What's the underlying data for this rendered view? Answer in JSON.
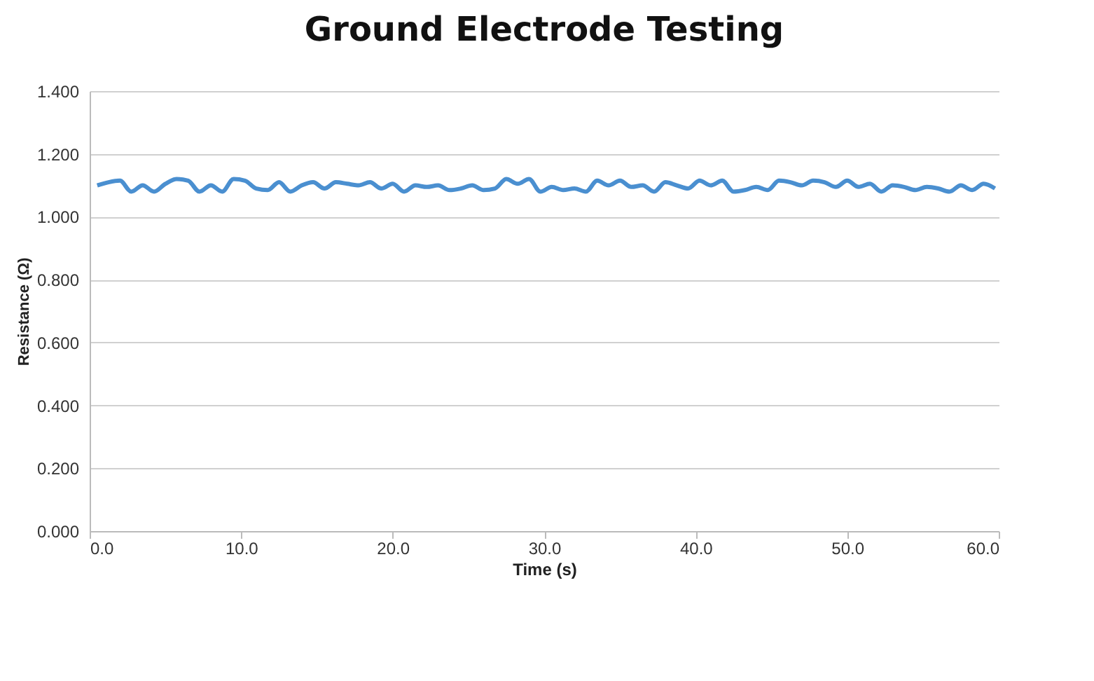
{
  "chart_data": {
    "type": "line",
    "title": "Ground Electrode Testing",
    "xlabel": "Time (s)",
    "ylabel": "Resistance (Ω)",
    "x": [
      0.5,
      1.25,
      2,
      2.75,
      3.5,
      4.25,
      5,
      5.75,
      6.5,
      7.25,
      8,
      8.75,
      9.5,
      10.25,
      11,
      11.75,
      12.5,
      13.25,
      14,
      14.75,
      15.5,
      16.25,
      17,
      17.75,
      18.5,
      19.25,
      20,
      20.75,
      21.5,
      22.25,
      23,
      23.75,
      24.5,
      25.25,
      26,
      26.75,
      27.5,
      28.25,
      29,
      29.75,
      30.5,
      31.25,
      32,
      32.75,
      33.5,
      34.25,
      35,
      35.75,
      36.5,
      37.25,
      38,
      38.75,
      39.5,
      40.25,
      41,
      41.75,
      42.5,
      43.25,
      44,
      44.75,
      45.5,
      46.25,
      47,
      47.75,
      48.5,
      49.25,
      50,
      50.75,
      51.5,
      52.25,
      53,
      53.75,
      54.5,
      55.25,
      56,
      56.75,
      57.5,
      58.25,
      59,
      59.75
    ],
    "series": [
      {
        "color": "#4a8fd0",
        "values": [
          1.1,
          1.11,
          1.115,
          1.08,
          1.1,
          1.08,
          1.105,
          1.12,
          1.115,
          1.08,
          1.1,
          1.08,
          1.12,
          1.115,
          1.09,
          1.085,
          1.11,
          1.08,
          1.1,
          1.11,
          1.09,
          1.11,
          1.105,
          1.1,
          1.11,
          1.09,
          1.105,
          1.08,
          1.1,
          1.095,
          1.1,
          1.085,
          1.09,
          1.1,
          1.085,
          1.09,
          1.12,
          1.105,
          1.12,
          1.08,
          1.095,
          1.085,
          1.09,
          1.08,
          1.115,
          1.1,
          1.115,
          1.095,
          1.1,
          1.08,
          1.11,
          1.1,
          1.09,
          1.115,
          1.1,
          1.115,
          1.08,
          1.085,
          1.095,
          1.085,
          1.115,
          1.11,
          1.1,
          1.115,
          1.11,
          1.095,
          1.115,
          1.095,
          1.105,
          1.08,
          1.1,
          1.095,
          1.085,
          1.095,
          1.09,
          1.08,
          1.1,
          1.085,
          1.105,
          1.09
        ]
      }
    ],
    "xlim": [
      0,
      60
    ],
    "xticks": [
      {
        "value": 0,
        "label": "0.0"
      },
      {
        "value": 10,
        "label": "10.0"
      },
      {
        "value": 20,
        "label": "20.0"
      },
      {
        "value": 30,
        "label": "30.0"
      },
      {
        "value": 40,
        "label": "40.0"
      },
      {
        "value": 50,
        "label": "50.0"
      },
      {
        "value": 60,
        "label": "60.0"
      }
    ],
    "ylim": [
      0,
      1.4
    ],
    "yticks": [
      {
        "value": 0,
        "label": "0.000"
      },
      {
        "value": 0.2,
        "label": "0.200"
      },
      {
        "value": 0.4,
        "label": "0.400"
      },
      {
        "value": 0.6,
        "label": "0.600"
      },
      {
        "value": 0.8,
        "label": "0.800"
      },
      {
        "value": 1,
        "label": "1.000"
      },
      {
        "value": 1.2,
        "label": "1.200"
      },
      {
        "value": 1.4,
        "label": "1.400"
      }
    ],
    "grid": "y",
    "line_style": "solid"
  }
}
